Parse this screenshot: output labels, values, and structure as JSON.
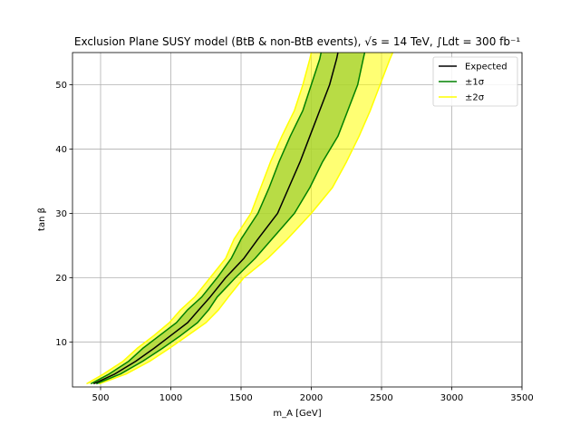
{
  "chart_data": {
    "type": "line",
    "title": "Exclusion Plane SUSY model (BtB & non-BtB events), √s = 14 TeV, ∫Ldt = 300 fb⁻¹",
    "xlabel": "m_A [GeV]",
    "ylabel": "tan β",
    "xlim": [
      300,
      3500
    ],
    "ylim": [
      3,
      55
    ],
    "xticks": [
      500,
      1000,
      1500,
      2000,
      2500,
      3000,
      3500
    ],
    "yticks": [
      10,
      20,
      30,
      40,
      50
    ],
    "grid": true,
    "legend_position": "upper-right",
    "legend": [
      {
        "label": "Expected",
        "color": "#000000"
      },
      {
        "label": "±1σ",
        "color": "#008000"
      },
      {
        "label": "±2σ",
        "color": "#ffff00"
      }
    ],
    "tanb": [
      3.5,
      5,
      7,
      9,
      11,
      13,
      15,
      17,
      20,
      23,
      26,
      30,
      34,
      38,
      42,
      46,
      50,
      54,
      55
    ],
    "series": [
      {
        "name": "Expected",
        "color": "#000000",
        "x": [
          450,
          600,
          750,
          880,
          1000,
          1120,
          1200,
          1280,
          1390,
          1520,
          1620,
          1760,
          1840,
          1920,
          1990,
          2060,
          2130,
          2180,
          2190
        ]
      },
      {
        "name": "-1σ",
        "color": "#008000",
        "x": [
          430,
          560,
          700,
          800,
          920,
          1040,
          1120,
          1220,
          1330,
          1430,
          1500,
          1620,
          1700,
          1770,
          1850,
          1940,
          2000,
          2060,
          2070
        ]
      },
      {
        "name": "+1σ",
        "color": "#008000",
        "x": [
          470,
          640,
          800,
          940,
          1070,
          1190,
          1270,
          1330,
          1460,
          1600,
          1720,
          1880,
          1990,
          2080,
          2190,
          2260,
          2330,
          2370,
          2380
        ]
      },
      {
        "name": "-2σ",
        "color": "#ffff00",
        "x": [
          400,
          520,
          660,
          760,
          880,
          990,
          1070,
          1170,
          1280,
          1390,
          1450,
          1570,
          1640,
          1710,
          1790,
          1880,
          1940,
          1990,
          2000
        ]
      },
      {
        "name": "+2σ",
        "color": "#ffff00",
        "x": [
          490,
          680,
          850,
          990,
          1120,
          1250,
          1340,
          1410,
          1520,
          1690,
          1830,
          2000,
          2150,
          2250,
          2340,
          2420,
          2490,
          2560,
          2580
        ]
      }
    ]
  }
}
